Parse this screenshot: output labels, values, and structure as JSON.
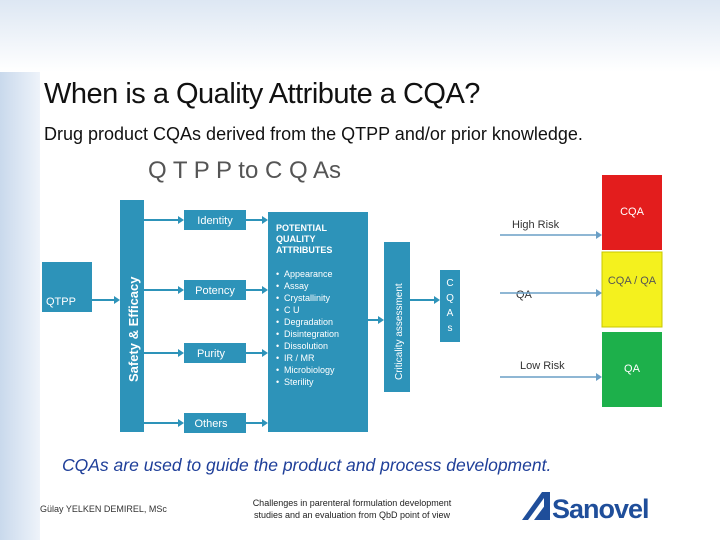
{
  "slide": {
    "title": "When is a Quality Attribute a CQA?",
    "subtitle": "Drug product CQAs derived from the QTPP and/or prior knowledge.",
    "caption": "CQAs are used to guide the product and process development."
  },
  "diagram": {
    "heading": "Q T P P to C Q As",
    "input": "QTPP",
    "band": "Safety & Efficacy",
    "categories": [
      "Identity",
      "Potency",
      "Purity",
      "Others"
    ],
    "attributes_title": [
      "POTENTIAL",
      "QUALITY",
      "ATTRIBUTES"
    ],
    "attributes": [
      "Appearance",
      "Assay",
      "Crystallinity",
      "C U",
      "Degradation",
      "Disintegration",
      "Dissolution",
      "IR / MR",
      "Microbiology",
      "Sterility"
    ],
    "assessment": "Criticality assessment",
    "output_letters": [
      "C",
      "Q",
      "A",
      "s"
    ],
    "risk_levels": [
      "High Risk",
      "QA",
      "Low Risk"
    ],
    "outcomes": [
      "CQA",
      "CQA / QA",
      "QA"
    ],
    "colors": {
      "teal": "#2d93b9",
      "red": "#e31d1d",
      "yellow": "#f4f11e",
      "green": "#1db04b"
    }
  },
  "footer": {
    "author": "Gülay YELKEN DEMIREL, MSc",
    "center_line1": "Challenges in parenteral formulation development",
    "center_line2": "studies and an evaluation from QbD point of view",
    "logo_text": "Sanovel"
  }
}
